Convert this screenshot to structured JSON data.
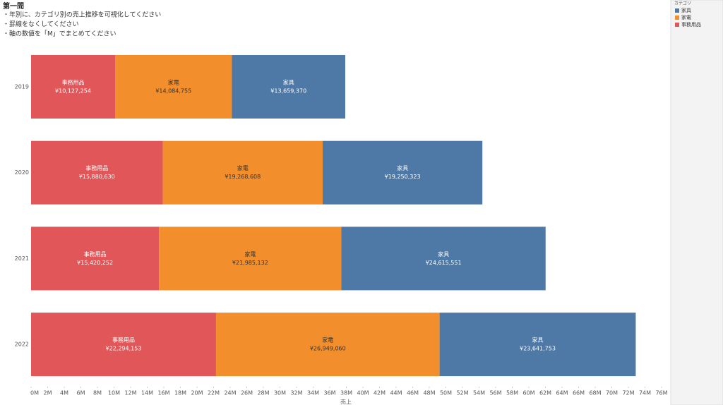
{
  "chart_data": {
    "type": "stacked_barh",
    "title": "第一問",
    "instructions": [
      "・年別に、カテゴリ別の売上推移を可視化してください",
      "・罫線をなくしてください",
      "・軸の数値を「M」でまとめてください"
    ],
    "xlabel": "売上",
    "legend_title": "カテゴリ",
    "categories": [
      "2019",
      "2020",
      "2021",
      "2022"
    ],
    "series": [
      {
        "name": "事務用品",
        "color": "#e15759",
        "values": [
          10127254,
          15880630,
          15420252,
          22294153
        ],
        "value_labels": [
          "¥10,127,254",
          "¥15,880,630",
          "¥15,420,252",
          "¥22,294,153"
        ]
      },
      {
        "name": "家電",
        "color": "#f28e2b",
        "values": [
          14084755,
          19268608,
          21985132,
          26949060
        ],
        "value_labels": [
          "¥14,084,755",
          "¥19,268,608",
          "¥21,985,132",
          "¥26,949,060"
        ]
      },
      {
        "name": "家具",
        "color": "#4e79a7",
        "values": [
          13659370,
          19250323,
          24615551,
          23641753
        ],
        "value_labels": [
          "¥13,659,370",
          "¥19,250,323",
          "¥24,615,551",
          "¥23,641,753"
        ]
      }
    ],
    "xlim": [
      0,
      76000000
    ],
    "xticks": [
      {
        "value": 0,
        "label": "0M"
      },
      {
        "value": 2000000,
        "label": "2M"
      },
      {
        "value": 4000000,
        "label": "4M"
      },
      {
        "value": 6000000,
        "label": "6M"
      },
      {
        "value": 8000000,
        "label": "8M"
      },
      {
        "value": 10000000,
        "label": "10M"
      },
      {
        "value": 12000000,
        "label": "12M"
      },
      {
        "value": 14000000,
        "label": "14M"
      },
      {
        "value": 16000000,
        "label": "16M"
      },
      {
        "value": 18000000,
        "label": "18M"
      },
      {
        "value": 20000000,
        "label": "20M"
      },
      {
        "value": 22000000,
        "label": "22M"
      },
      {
        "value": 24000000,
        "label": "24M"
      },
      {
        "value": 26000000,
        "label": "26M"
      },
      {
        "value": 28000000,
        "label": "28M"
      },
      {
        "value": 30000000,
        "label": "30M"
      },
      {
        "value": 32000000,
        "label": "32M"
      },
      {
        "value": 34000000,
        "label": "34M"
      },
      {
        "value": 36000000,
        "label": "36M"
      },
      {
        "value": 38000000,
        "label": "38M"
      },
      {
        "value": 40000000,
        "label": "40M"
      },
      {
        "value": 42000000,
        "label": "42M"
      },
      {
        "value": 44000000,
        "label": "44M"
      },
      {
        "value": 46000000,
        "label": "46M"
      },
      {
        "value": 48000000,
        "label": "48M"
      },
      {
        "value": 50000000,
        "label": "50M"
      },
      {
        "value": 52000000,
        "label": "52M"
      },
      {
        "value": 54000000,
        "label": "54M"
      },
      {
        "value": 56000000,
        "label": "56M"
      },
      {
        "value": 58000000,
        "label": "58M"
      },
      {
        "value": 60000000,
        "label": "60M"
      },
      {
        "value": 62000000,
        "label": "62M"
      },
      {
        "value": 64000000,
        "label": "64M"
      },
      {
        "value": 66000000,
        "label": "66M"
      },
      {
        "value": 68000000,
        "label": "68M"
      },
      {
        "value": 70000000,
        "label": "70M"
      },
      {
        "value": 72000000,
        "label": "72M"
      },
      {
        "value": 74000000,
        "label": "74M"
      },
      {
        "value": 76000000,
        "label": "76M"
      }
    ],
    "grid": false
  }
}
